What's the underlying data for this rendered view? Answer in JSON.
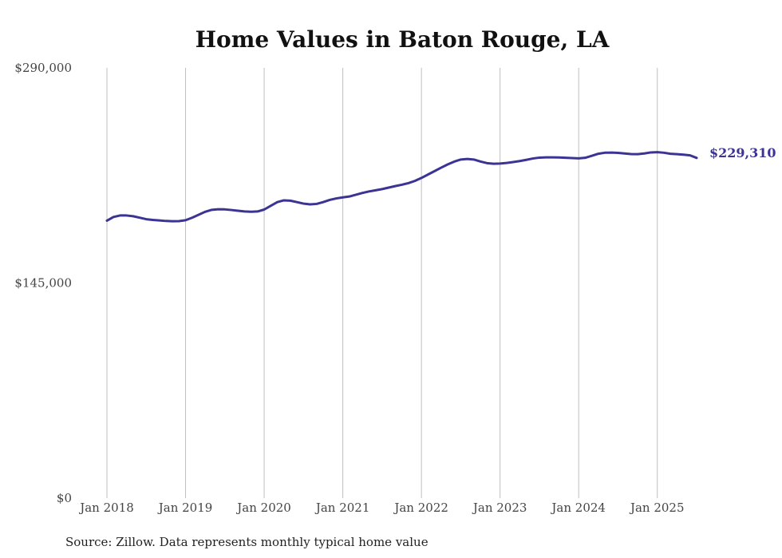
{
  "chart_data": {
    "type": "line",
    "title": "Home Values in Baton Rouge, LA",
    "source": "Source: Zillow. Data represents monthly typical home value",
    "ylim": [
      0,
      290000
    ],
    "yticks": [
      {
        "value": 0,
        "label": "$0"
      },
      {
        "value": 145000,
        "label": "$145,000"
      },
      {
        "value": 290000,
        "label": "$290,000"
      }
    ],
    "xlim": [
      "2018-01",
      "2025-07"
    ],
    "xticks": [
      {
        "date": "2018-01",
        "label": "Jan 2018"
      },
      {
        "date": "2019-01",
        "label": "Jan 2019"
      },
      {
        "date": "2020-01",
        "label": "Jan 2020"
      },
      {
        "date": "2021-01",
        "label": "Jan 2021"
      },
      {
        "date": "2022-01",
        "label": "Jan 2022"
      },
      {
        "date": "2023-01",
        "label": "Jan 2023"
      },
      {
        "date": "2024-01",
        "label": "Jan 2024"
      },
      {
        "date": "2025-01",
        "label": "Jan 2025"
      }
    ],
    "grid": {
      "vertical": true,
      "horizontal": false
    },
    "series_color": "#3b3494",
    "end_label": "$229,310",
    "series": [
      {
        "x": [
          "2018-01",
          "2018-02",
          "2018-03",
          "2018-04",
          "2018-05",
          "2018-06",
          "2018-07",
          "2018-08",
          "2018-09",
          "2018-10",
          "2018-11",
          "2018-12",
          "2019-01",
          "2019-02",
          "2019-03",
          "2019-04",
          "2019-05",
          "2019-06",
          "2019-07",
          "2019-08",
          "2019-09",
          "2019-10",
          "2019-11",
          "2019-12",
          "2020-01",
          "2020-02",
          "2020-03",
          "2020-04",
          "2020-05",
          "2020-06",
          "2020-07",
          "2020-08",
          "2020-09",
          "2020-10",
          "2020-11",
          "2020-12",
          "2021-01",
          "2021-02",
          "2021-03",
          "2021-04",
          "2021-05",
          "2021-06",
          "2021-07",
          "2021-08",
          "2021-09",
          "2021-10",
          "2021-11",
          "2021-12",
          "2022-01",
          "2022-02",
          "2022-03",
          "2022-04",
          "2022-05",
          "2022-06",
          "2022-07",
          "2022-08",
          "2022-09",
          "2022-10",
          "2022-11",
          "2022-12",
          "2023-01",
          "2023-02",
          "2023-03",
          "2023-04",
          "2023-05",
          "2023-06",
          "2023-07",
          "2023-08",
          "2023-09",
          "2023-10",
          "2023-11",
          "2023-12",
          "2024-01",
          "2024-02",
          "2024-03",
          "2024-04",
          "2024-05",
          "2024-06",
          "2024-07",
          "2024-08",
          "2024-09",
          "2024-10",
          "2024-11",
          "2024-12",
          "2025-01",
          "2025-02",
          "2025-03",
          "2025-04",
          "2025-05",
          "2025-06",
          "2025-07"
        ],
        "values": [
          187000,
          189500,
          190500,
          190500,
          190000,
          189000,
          188000,
          187500,
          187200,
          186800,
          186600,
          186700,
          187300,
          189000,
          191000,
          193000,
          194300,
          194700,
          194600,
          194200,
          193700,
          193200,
          193000,
          193200,
          194500,
          197000,
          199500,
          200700,
          200500,
          199500,
          198500,
          198000,
          198300,
          199500,
          201000,
          202000,
          202700,
          203300,
          204500,
          205700,
          206700,
          207500,
          208300,
          209300,
          210300,
          211200,
          212300,
          213800,
          215800,
          218100,
          220400,
          222700,
          224900,
          226800,
          228200,
          228600,
          228200,
          226900,
          225800,
          225400,
          225500,
          225900,
          226500,
          227200,
          228000,
          228900,
          229500,
          229700,
          229700,
          229600,
          229400,
          229200,
          229000,
          229400,
          230700,
          232100,
          232800,
          232900,
          232700,
          232300,
          231900,
          231800,
          232300,
          233000,
          233200,
          232800,
          232100,
          231800,
          231500,
          231000,
          229310
        ]
      }
    ]
  }
}
